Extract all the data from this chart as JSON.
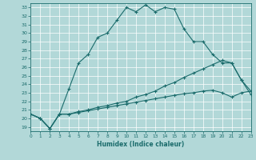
{
  "title": "",
  "xlabel": "Humidex (Indice chaleur)",
  "background_color": "#b2d8d8",
  "grid_color": "#ffffff",
  "line_color": "#1a6b6b",
  "x_values": [
    0,
    1,
    2,
    3,
    4,
    5,
    6,
    7,
    8,
    9,
    10,
    11,
    12,
    13,
    14,
    15,
    16,
    17,
    18,
    19,
    20,
    21,
    22,
    23
  ],
  "line1_y": [
    20.5,
    20.0,
    18.8,
    20.5,
    23.5,
    26.5,
    27.5,
    29.5,
    30.0,
    31.5,
    33.0,
    32.5,
    33.3,
    32.5,
    33.0,
    32.8,
    30.5,
    29.0,
    29.0,
    27.5,
    26.5,
    26.5,
    24.5,
    22.8
  ],
  "line2_y": [
    20.5,
    20.0,
    18.8,
    20.5,
    20.5,
    20.8,
    21.0,
    21.3,
    21.5,
    21.8,
    22.0,
    22.5,
    22.8,
    23.2,
    23.8,
    24.2,
    24.8,
    25.3,
    25.8,
    26.3,
    26.8,
    26.5,
    24.5,
    23.2
  ],
  "line3_y": [
    20.5,
    20.0,
    18.8,
    20.5,
    20.5,
    20.7,
    20.9,
    21.1,
    21.3,
    21.5,
    21.7,
    21.9,
    22.1,
    22.3,
    22.5,
    22.7,
    22.9,
    23.0,
    23.2,
    23.3,
    23.0,
    22.5,
    23.0,
    23.2
  ],
  "xlim": [
    0,
    23
  ],
  "ylim": [
    18.5,
    33.5
  ],
  "yticks": [
    19,
    20,
    21,
    22,
    23,
    24,
    25,
    26,
    27,
    28,
    29,
    30,
    31,
    32,
    33
  ],
  "xticks": [
    0,
    1,
    2,
    3,
    4,
    5,
    6,
    7,
    8,
    9,
    10,
    11,
    12,
    13,
    14,
    15,
    16,
    17,
    18,
    19,
    20,
    21,
    22,
    23
  ]
}
